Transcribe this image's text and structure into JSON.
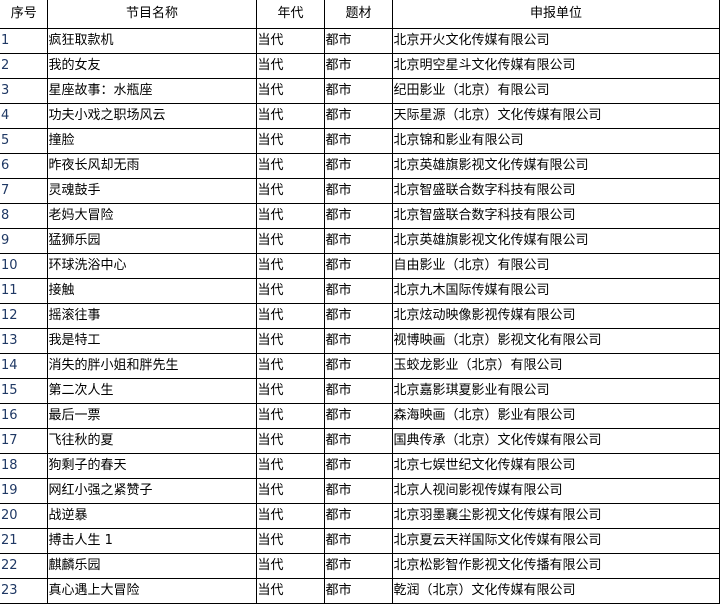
{
  "headers": [
    "序号",
    "节目名称",
    "年代",
    "题材",
    "申报单位"
  ],
  "rows": [
    [
      "1",
      "疯狂取款机",
      "当代",
      "都市",
      "北京开火文化传媒有限公司"
    ],
    [
      "2",
      "我的女友",
      "当代",
      "都市",
      "北京明空星斗文化传媒有限公司"
    ],
    [
      "3",
      "星座故事：水瓶座",
      "当代",
      "都市",
      "纪田影业（北京）有限公司"
    ],
    [
      "4",
      "功夫小戏之职场风云",
      "当代",
      "都市",
      "天际星源（北京）文化传媒有限公司"
    ],
    [
      "5",
      "撞脸",
      "当代",
      "都市",
      "北京锦和影业有限公司"
    ],
    [
      "6",
      "昨夜长风却无雨",
      "当代",
      "都市",
      "北京英雄旗影视文化传媒有限公司"
    ],
    [
      "7",
      "灵魂鼓手",
      "当代",
      "都市",
      "北京智盛联合数字科技有限公司"
    ],
    [
      "8",
      "老妈大冒险",
      "当代",
      "都市",
      "北京智盛联合数字科技有限公司"
    ],
    [
      "9",
      "猛狮乐园",
      "当代",
      "都市",
      "北京英雄旗影视文化传媒有限公司"
    ],
    [
      "10",
      "环球洗浴中心",
      "当代",
      "都市",
      "自由影业（北京）有限公司"
    ],
    [
      "11",
      "接触",
      "当代",
      "都市",
      "北京九木国际传媒有限公司"
    ],
    [
      "12",
      "摇滚往事",
      "当代",
      "都市",
      "北京炫动映像影视传媒有限公司"
    ],
    [
      "13",
      "我是特工",
      "当代",
      "都市",
      "视博映画（北京）影视文化有限公司"
    ],
    [
      "14",
      "消失的胖小姐和胖先生",
      "当代",
      "都市",
      "玉蛟龙影业（北京）有限公司"
    ],
    [
      "15",
      "第二次人生",
      "当代",
      "都市",
      "北京嘉影琪夏影业有限公司"
    ],
    [
      "16",
      "最后一票",
      "当代",
      "都市",
      "森海映画（北京）影业有限公司"
    ],
    [
      "17",
      "飞往秋的夏",
      "当代",
      "都市",
      "国典传承（北京）文化传媒有限公司"
    ],
    [
      "18",
      "狗剩子的春天",
      "当代",
      "都市",
      "北京七娱世纪文化传媒有限公司"
    ],
    [
      "19",
      "网红小强之紧赞子",
      "当代",
      "都市",
      "北京人视间影视传媒有限公司"
    ],
    [
      "20",
      "战逆暴",
      "当代",
      "都市",
      "北京羽墨襄尘影视文化传媒有限公司"
    ],
    [
      "21",
      "搏击人生 1",
      "当代",
      "都市",
      "北京夏云天祥国际文化传媒有限公司"
    ],
    [
      "22",
      "麒麟乐园",
      "当代",
      "都市",
      "北京松影智作影视文化传播有限公司"
    ],
    [
      "23",
      "真心遇上大冒险",
      "当代",
      "都市",
      "乾润（北京）文化传媒有限公司"
    ]
  ]
}
